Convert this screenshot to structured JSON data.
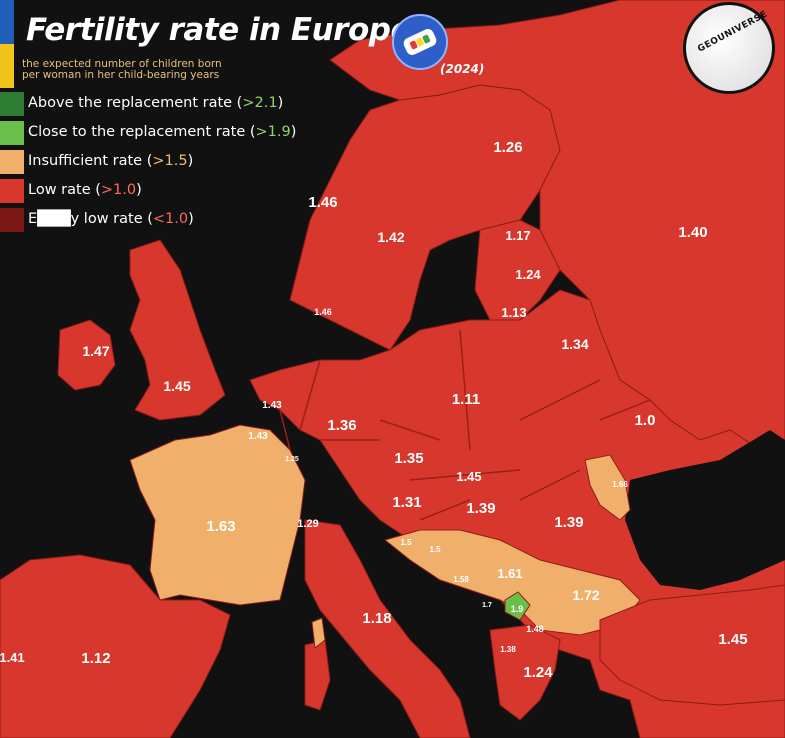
{
  "header": {
    "title": "Fertility rate in Europe",
    "subtitle_line1": "the expected number of children born",
    "subtitle_line2": "per woman in her child-bearing years",
    "year": "(2024)",
    "logo": "GEOUNIVERSE"
  },
  "colors": {
    "above": "#2e7d32",
    "close": "#6abf4b",
    "insufficient": "#f0b06b",
    "low": "#d7372c",
    "extremely_low": "#7a1714",
    "sea": "#111111",
    "border": "#9b201a"
  },
  "legend": [
    {
      "label": "Above the replacement rate (",
      "threshold": ">2.1",
      "suffix": ")",
      "category": "above"
    },
    {
      "label": "Close to the replacement rate (",
      "threshold": ">1.9",
      "suffix": ")",
      "category": "close"
    },
    {
      "label": "Insufficient rate (",
      "threshold": ">1.5",
      "suffix": ")",
      "category": "insufficient"
    },
    {
      "label": "Low rate (",
      "threshold": ">1.0",
      "suffix": ")",
      "category": "low"
    },
    {
      "label": "E███y low rate (",
      "threshold": "<1.0",
      "suffix": ")",
      "category": "extremely_low"
    }
  ],
  "map_values": [
    {
      "value": "1.26",
      "category": "low"
    },
    {
      "value": "1.40",
      "category": "low"
    },
    {
      "value": "1.46",
      "category": "low"
    },
    {
      "value": "1.42",
      "category": "low"
    },
    {
      "value": "1.17",
      "category": "low"
    },
    {
      "value": "1.24",
      "category": "low"
    },
    {
      "value": "1.13",
      "category": "low"
    },
    {
      "value": "1.46",
      "category": "low"
    },
    {
      "value": "1.34",
      "category": "low"
    },
    {
      "value": "1.47",
      "category": "low"
    },
    {
      "value": "1.45",
      "category": "low"
    },
    {
      "value": "1.43",
      "category": "low"
    },
    {
      "value": "1.43",
      "category": "low"
    },
    {
      "value": "1.25",
      "category": "low"
    },
    {
      "value": "1.36",
      "category": "low"
    },
    {
      "value": "1.11",
      "category": "low"
    },
    {
      "value": "1.0",
      "category": "low"
    },
    {
      "value": "1.35",
      "category": "low"
    },
    {
      "value": "1.45",
      "category": "low"
    },
    {
      "value": "1.66",
      "category": "insufficient"
    },
    {
      "value": "1.63",
      "category": "insufficient"
    },
    {
      "value": "1.29",
      "category": "low"
    },
    {
      "value": "1.31",
      "category": "low"
    },
    {
      "value": "1.39",
      "category": "low"
    },
    {
      "value": "1.39",
      "category": "low"
    },
    {
      "value": "1.5",
      "category": "insufficient"
    },
    {
      "value": "1.5",
      "category": "insufficient"
    },
    {
      "value": "1.58",
      "category": "insufficient"
    },
    {
      "value": "1.61",
      "category": "insufficient"
    },
    {
      "value": "1.72",
      "category": "insufficient"
    },
    {
      "value": "1.7",
      "category": "insufficient"
    },
    {
      "value": "1.9",
      "category": "close"
    },
    {
      "value": "1.48",
      "category": "low"
    },
    {
      "value": "1.38",
      "category": "low"
    },
    {
      "value": "1.18",
      "category": "low"
    },
    {
      "value": "1.24",
      "category": "low"
    },
    {
      "value": "1.45",
      "category": "low"
    },
    {
      "value": "1.41",
      "category": "low"
    },
    {
      "value": "1.12",
      "category": "low"
    }
  ]
}
